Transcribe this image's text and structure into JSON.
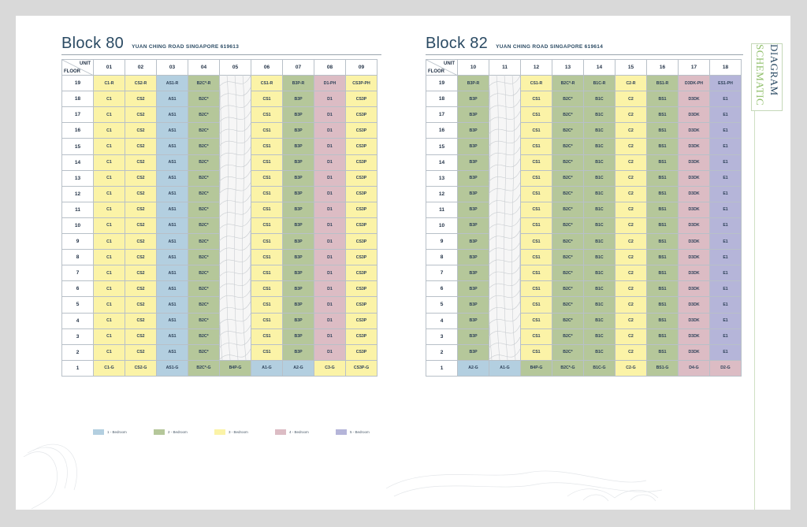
{
  "block80": {
    "title": "Block 80",
    "address": "YUAN CHING ROAD SINGAPORE 619613",
    "unit_label": "UNIT",
    "floor_label": "FLOOR",
    "units": [
      "01",
      "02",
      "03",
      "04",
      "05",
      "06",
      "07",
      "08",
      "09"
    ],
    "rows": [
      {
        "floor": "19",
        "cells": [
          "C1-R",
          "CS2-R",
          "AS1-R",
          "B2C*-R",
          "",
          "CS1-R",
          "B3P-R",
          "D1-PH",
          "CS3P-PH"
        ]
      },
      {
        "floor": "18",
        "cells": [
          "C1",
          "CS2",
          "AS1",
          "B2C*",
          "",
          "CS1",
          "B3P",
          "D1",
          "CS3P"
        ]
      },
      {
        "floor": "17",
        "cells": [
          "C1",
          "CS2",
          "AS1",
          "B2C*",
          "",
          "CS1",
          "B3P",
          "D1",
          "CS3P"
        ]
      },
      {
        "floor": "16",
        "cells": [
          "C1",
          "CS2",
          "AS1",
          "B2C*",
          "",
          "CS1",
          "B3P",
          "D1",
          "CS3P"
        ]
      },
      {
        "floor": "15",
        "cells": [
          "C1",
          "CS2",
          "AS1",
          "B2C*",
          "",
          "CS1",
          "B3P",
          "D1",
          "CS3P"
        ]
      },
      {
        "floor": "14",
        "cells": [
          "C1",
          "CS2",
          "AS1",
          "B2C*",
          "",
          "CS1",
          "B3P",
          "D1",
          "CS3P"
        ]
      },
      {
        "floor": "13",
        "cells": [
          "C1",
          "CS2",
          "AS1",
          "B2C*",
          "",
          "CS1",
          "B3P",
          "D1",
          "CS3P"
        ]
      },
      {
        "floor": "12",
        "cells": [
          "C1",
          "CS2",
          "AS1",
          "B2C*",
          "",
          "CS1",
          "B3P",
          "D1",
          "CS3P"
        ]
      },
      {
        "floor": "11",
        "cells": [
          "C1",
          "CS2",
          "AS1",
          "B2C*",
          "",
          "CS1",
          "B3P",
          "D1",
          "CS3P"
        ]
      },
      {
        "floor": "10",
        "cells": [
          "C1",
          "CS2",
          "AS1",
          "B2C*",
          "",
          "CS1",
          "B3P",
          "D1",
          "CS3P"
        ]
      },
      {
        "floor": "9",
        "cells": [
          "C1",
          "CS2",
          "AS1",
          "B2C*",
          "",
          "CS1",
          "B3P",
          "D1",
          "CS3P"
        ]
      },
      {
        "floor": "8",
        "cells": [
          "C1",
          "CS2",
          "AS1",
          "B2C*",
          "",
          "CS1",
          "B3P",
          "D1",
          "CS3P"
        ]
      },
      {
        "floor": "7",
        "cells": [
          "C1",
          "CS2",
          "AS1",
          "B2C*",
          "",
          "CS1",
          "B3P",
          "D1",
          "CS3P"
        ]
      },
      {
        "floor": "6",
        "cells": [
          "C1",
          "CS2",
          "AS1",
          "B2C*",
          "",
          "CS1",
          "B3P",
          "D1",
          "CS3P"
        ]
      },
      {
        "floor": "5",
        "cells": [
          "C1",
          "CS2",
          "AS1",
          "B2C*",
          "",
          "CS1",
          "B3P",
          "D1",
          "CS3P"
        ]
      },
      {
        "floor": "4",
        "cells": [
          "C1",
          "CS2",
          "AS1",
          "B2C*",
          "",
          "CS1",
          "B3P",
          "D1",
          "CS3P"
        ]
      },
      {
        "floor": "3",
        "cells": [
          "C1",
          "CS2",
          "AS1",
          "B2C*",
          "",
          "CS1",
          "B3P",
          "D1",
          "CS3P"
        ]
      },
      {
        "floor": "2",
        "cells": [
          "C1",
          "CS2",
          "AS1",
          "B2C*",
          "",
          "CS1",
          "B3P",
          "D1",
          "CS3P"
        ]
      },
      {
        "floor": "1",
        "cells": [
          "C1-G",
          "CS2-G",
          "AS1-G",
          "B2C*-G",
          "B4P-G",
          "A1-G",
          "A2-G",
          "C3-G",
          "CS3P-G"
        ]
      }
    ],
    "column_colors": [
      "#fbf3a7",
      "#fbf3a7",
      "#b3cfe0",
      "#b5c79a",
      "void",
      "#fbf3a7",
      "#b5c79a",
      "#dcbcc4",
      "#fbf3a7"
    ],
    "ground_colors": [
      "#fbf3a7",
      "#fbf3a7",
      "#b3cfe0",
      "#b5c79a",
      "#b5c79a",
      "#b3cfe0",
      "#b3cfe0",
      "#fbf3a7",
      "#fbf3a7"
    ]
  },
  "block82": {
    "title": "Block 82",
    "address": "YUAN CHING ROAD SINGAPORE 619614",
    "unit_label": "UNIT",
    "floor_label": "FLOOR",
    "units": [
      "10",
      "11",
      "12",
      "13",
      "14",
      "15",
      "16",
      "17",
      "18"
    ],
    "rows": [
      {
        "floor": "19",
        "cells": [
          "B3P-R",
          "",
          "CS1-R",
          "B2C*-R",
          "B1C-R",
          "C2-R",
          "BS1-R",
          "D3DK-PH",
          "ES1-PH"
        ]
      },
      {
        "floor": "18",
        "cells": [
          "B3P",
          "",
          "CS1",
          "B2C*",
          "B1C",
          "C2",
          "BS1",
          "D3DK",
          "E1"
        ]
      },
      {
        "floor": "17",
        "cells": [
          "B3P",
          "",
          "CS1",
          "B2C*",
          "B1C",
          "C2",
          "BS1",
          "D3DK",
          "E1"
        ]
      },
      {
        "floor": "16",
        "cells": [
          "B3P",
          "",
          "CS1",
          "B2C*",
          "B1C",
          "C2",
          "BS1",
          "D3DK",
          "E1"
        ]
      },
      {
        "floor": "15",
        "cells": [
          "B3P",
          "",
          "CS1",
          "B2C*",
          "B1C",
          "C2",
          "BS1",
          "D3DK",
          "E1"
        ]
      },
      {
        "floor": "14",
        "cells": [
          "B3P",
          "",
          "CS1",
          "B2C*",
          "B1C",
          "C2",
          "BS1",
          "D3DK",
          "E1"
        ]
      },
      {
        "floor": "13",
        "cells": [
          "B3P",
          "",
          "CS1",
          "B2C*",
          "B1C",
          "C2",
          "BS1",
          "D3DK",
          "E1"
        ]
      },
      {
        "floor": "12",
        "cells": [
          "B3P",
          "",
          "CS1",
          "B2C*",
          "B1C",
          "C2",
          "BS1",
          "D3DK",
          "E1"
        ]
      },
      {
        "floor": "11",
        "cells": [
          "B3P",
          "",
          "CS1",
          "B2C*",
          "B1C",
          "C2",
          "BS1",
          "D3DK",
          "E1"
        ]
      },
      {
        "floor": "10",
        "cells": [
          "B3P",
          "",
          "CS1",
          "B2C*",
          "B1C",
          "C2",
          "BS1",
          "D3DK",
          "E1"
        ]
      },
      {
        "floor": "9",
        "cells": [
          "B3P",
          "",
          "CS1",
          "B2C*",
          "B1C",
          "C2",
          "BS1",
          "D3DK",
          "E1"
        ]
      },
      {
        "floor": "8",
        "cells": [
          "B3P",
          "",
          "CS1",
          "B2C*",
          "B1C",
          "C2",
          "BS1",
          "D3DK",
          "E1"
        ]
      },
      {
        "floor": "7",
        "cells": [
          "B3P",
          "",
          "CS1",
          "B2C*",
          "B1C",
          "C2",
          "BS1",
          "D3DK",
          "E1"
        ]
      },
      {
        "floor": "6",
        "cells": [
          "B3P",
          "",
          "CS1",
          "B2C*",
          "B1C",
          "C2",
          "BS1",
          "D3DK",
          "E1"
        ]
      },
      {
        "floor": "5",
        "cells": [
          "B3P",
          "",
          "CS1",
          "B2C*",
          "B1C",
          "C2",
          "BS1",
          "D3DK",
          "E1"
        ]
      },
      {
        "floor": "4",
        "cells": [
          "B3P",
          "",
          "CS1",
          "B2C*",
          "B1C",
          "C2",
          "BS1",
          "D3DK",
          "E1"
        ]
      },
      {
        "floor": "3",
        "cells": [
          "B3P",
          "",
          "CS1",
          "B2C*",
          "B1C",
          "C2",
          "BS1",
          "D3DK",
          "E1"
        ]
      },
      {
        "floor": "2",
        "cells": [
          "B3P",
          "",
          "CS1",
          "B2C*",
          "B1C",
          "C2",
          "BS1",
          "D3DK",
          "E1"
        ]
      },
      {
        "floor": "1",
        "cells": [
          "A2-G",
          "A1-G",
          "B4P-G",
          "B2C*-G",
          "B1C-G",
          "C2-G",
          "BS1-G",
          "D4-G",
          "D2-G"
        ]
      }
    ],
    "column_colors": [
      "#b5c79a",
      "void",
      "#fbf3a7",
      "#b5c79a",
      "#b5c79a",
      "#fbf3a7",
      "#b5c79a",
      "#dcbcc4",
      "#b5b5d9"
    ],
    "ground_colors": [
      "#b3cfe0",
      "#b3cfe0",
      "#b5c79a",
      "#b5c79a",
      "#b5c79a",
      "#fbf3a7",
      "#b5c79a",
      "#dcbcc4",
      "#dcbcc4"
    ]
  },
  "legend": [
    {
      "label": "1 - Bedroom",
      "color": "#b3cfe0"
    },
    {
      "label": "2 - Bedroom",
      "color": "#b5c79a"
    },
    {
      "label": "3 - Bedroom",
      "color": "#fbf3a7"
    },
    {
      "label": "4 - Bedroom",
      "color": "#dcbcc4"
    },
    {
      "label": "5 - Bedroom",
      "color": "#b5b5d9"
    }
  ],
  "side_tab": {
    "line1": "SCHEMATIC",
    "line2": "DIAGRAM"
  }
}
